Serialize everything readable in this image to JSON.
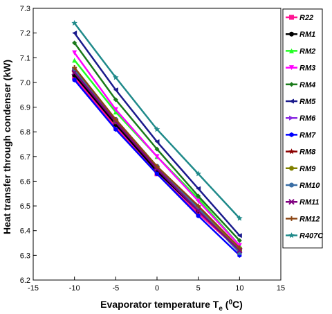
{
  "chart_data": {
    "type": "line",
    "xlabel": {
      "main": "Evaporator temperature T",
      "sub": "e",
      "open": " (",
      "sup": "0",
      "close": "C)"
    },
    "ylabel": "Heat transfer through condenser (kW)",
    "xlim": [
      -15,
      15
    ],
    "ylim": [
      6.2,
      7.3
    ],
    "xticks": [
      "-15",
      "-10",
      "-5",
      "0",
      "5",
      "10",
      "15"
    ],
    "yticks": [
      "6.2",
      "6.3",
      "6.4",
      "6.5",
      "6.6",
      "6.7",
      "6.8",
      "6.9",
      "7.0",
      "7.1",
      "7.2",
      "7.3"
    ],
    "grid": false,
    "legend_position": "right",
    "x": [
      -10,
      -5,
      0,
      5,
      10
    ],
    "series": [
      {
        "name": "R22",
        "color": "#ff1493",
        "marker": "square",
        "values": [
          7.02,
          6.82,
          6.63,
          6.47,
          6.32
        ]
      },
      {
        "name": "RM1",
        "color": "#000000",
        "marker": "circle",
        "values": [
          7.03,
          6.83,
          6.64,
          6.48,
          6.32
        ]
      },
      {
        "name": "RM2",
        "color": "#22ff22",
        "marker": "triangle-up",
        "values": [
          7.09,
          6.88,
          6.7,
          6.53,
          6.34
        ]
      },
      {
        "name": "RM3",
        "color": "#ff00ff",
        "marker": "triangle-down",
        "values": [
          7.12,
          6.89,
          6.7,
          6.52,
          6.34
        ]
      },
      {
        "name": "RM4",
        "color": "#1a7a1a",
        "marker": "diamond",
        "values": [
          7.16,
          6.93,
          6.73,
          6.54,
          6.36
        ]
      },
      {
        "name": "RM5",
        "color": "#1a1a8c",
        "marker": "triangle-left",
        "values": [
          7.2,
          6.97,
          6.76,
          6.57,
          6.38
        ]
      },
      {
        "name": "RM6",
        "color": "#8a2be2",
        "marker": "triangle-right",
        "values": [
          7.05,
          6.84,
          6.65,
          6.49,
          6.32
        ]
      },
      {
        "name": "RM7",
        "color": "#0000ff",
        "marker": "hexagon",
        "values": [
          7.01,
          6.81,
          6.63,
          6.46,
          6.3
        ]
      },
      {
        "name": "RM8",
        "color": "#8b0000",
        "marker": "star",
        "values": [
          7.04,
          6.84,
          6.65,
          6.48,
          6.32
        ]
      },
      {
        "name": "RM9",
        "color": "#808000",
        "marker": "circle",
        "values": [
          7.05,
          6.84,
          6.66,
          6.49,
          6.32
        ]
      },
      {
        "name": "RM10",
        "color": "#3a6ea5",
        "marker": "circle",
        "values": [
          7.05,
          6.85,
          6.66,
          6.49,
          6.31
        ]
      },
      {
        "name": "RM11",
        "color": "#800080",
        "marker": "x",
        "values": [
          7.04,
          6.84,
          6.65,
          6.48,
          6.32
        ]
      },
      {
        "name": "RM12",
        "color": "#8b4513",
        "marker": "plus",
        "values": [
          7.06,
          6.85,
          6.66,
          6.5,
          6.33
        ]
      },
      {
        "name": "R407C",
        "color": "#1f8a8a",
        "marker": "star",
        "values": [
          7.24,
          7.02,
          6.81,
          6.63,
          6.45
        ]
      }
    ]
  }
}
